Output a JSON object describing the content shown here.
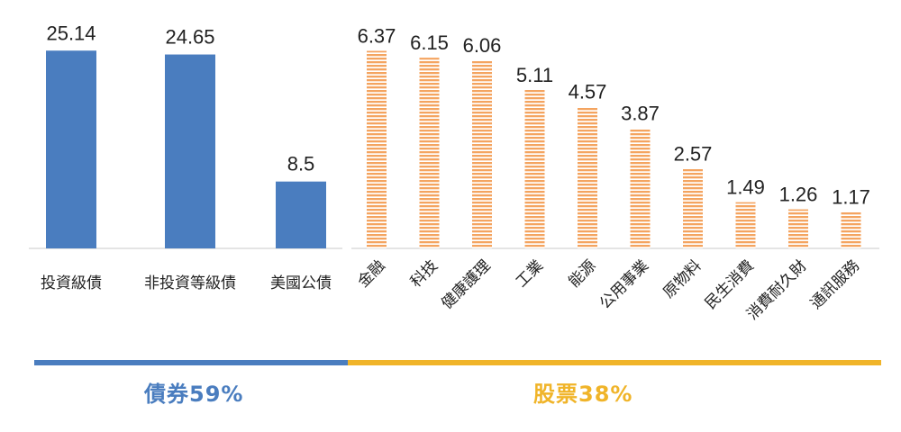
{
  "chart_data": [
    {
      "type": "bar",
      "categories": [
        "投資級債",
        "非投資等級債",
        "美國公債"
      ],
      "values": [
        25.14,
        24.65,
        8.5
      ],
      "value_labels": [
        "25.14",
        "24.65",
        "8.5"
      ],
      "ylim": [
        0,
        27
      ],
      "color": "#4a7dbf",
      "bar_style": "solid",
      "grid": false
    },
    {
      "type": "bar",
      "categories": [
        "金融",
        "科技",
        "健康護理",
        "工業",
        "能源",
        "公用事業",
        "原物料",
        "民生消費",
        "消費耐久財",
        "通訊服務"
      ],
      "values": [
        6.37,
        6.15,
        6.06,
        5.11,
        4.57,
        3.87,
        2.57,
        1.49,
        1.26,
        1.17
      ],
      "value_labels": [
        "6.37",
        "6.15",
        "6.06",
        "5.11",
        "4.57",
        "3.87",
        "2.57",
        "1.49",
        "1.26",
        "1.17"
      ],
      "ylim": [
        0,
        6.85
      ],
      "color": "#f4a460",
      "bar_style": "horizontal-stripes",
      "tick_label_rotation": -45,
      "grid": false
    }
  ],
  "groups": {
    "bonds": {
      "label": "債券59%",
      "color": "#4a7dbf"
    },
    "equities": {
      "label": "股票38%",
      "color": "#f0b429"
    }
  }
}
